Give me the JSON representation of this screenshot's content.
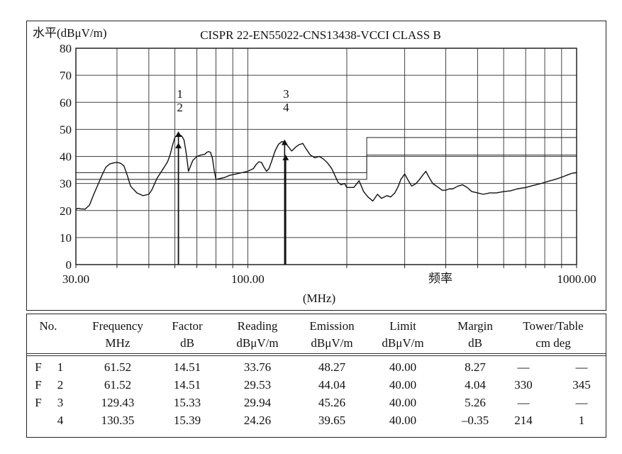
{
  "chart_data": {
    "type": "line",
    "title": "CISPR 22-EN55022-CNS13438-VCCI CLASS B",
    "ylabel": "水平(dBμV/m)",
    "xlabel": "频率",
    "xunit": "(MHz)",
    "x_scale": "log",
    "xlim": [
      30,
      1000
    ],
    "ylim": [
      0,
      80
    ],
    "yticks": [
      0,
      10,
      20,
      30,
      40,
      50,
      60,
      70,
      80
    ],
    "xtick_labels": [
      {
        "value": 30,
        "label": "30.00"
      },
      {
        "value": 100,
        "label": "100.00"
      },
      {
        "value": 1000,
        "label": "1000.00"
      }
    ],
    "grid": true,
    "series": [
      {
        "name": "",
        "points": [
          [
            30,
            20.5
          ],
          [
            30.5,
            20.8
          ],
          [
            31,
            20.6
          ],
          [
            32,
            20.5
          ],
          [
            33,
            22
          ],
          [
            34,
            26
          ],
          [
            35,
            29.5
          ],
          [
            36,
            33
          ],
          [
            37,
            36
          ],
          [
            38,
            37.2
          ],
          [
            39,
            37.6
          ],
          [
            40,
            37.8
          ],
          [
            41,
            37.5
          ],
          [
            42,
            36.5
          ],
          [
            43,
            33
          ],
          [
            44,
            29
          ],
          [
            46,
            26.5
          ],
          [
            48,
            25.5
          ],
          [
            50,
            26
          ],
          [
            51,
            27.5
          ],
          [
            53,
            32
          ],
          [
            55,
            35
          ],
          [
            57,
            38
          ],
          [
            58,
            40.5
          ],
          [
            59,
            44
          ],
          [
            60,
            47
          ],
          [
            61.5,
            48.3
          ],
          [
            63,
            47.5
          ],
          [
            64,
            46
          ],
          [
            65,
            41
          ],
          [
            66,
            34.5
          ],
          [
            67,
            36.5
          ],
          [
            68,
            38.5
          ],
          [
            70,
            40
          ],
          [
            72,
            40.5
          ],
          [
            74,
            40.8
          ],
          [
            75,
            41.5
          ],
          [
            76,
            41.8
          ],
          [
            77,
            41.5
          ],
          [
            78,
            39.5
          ],
          [
            79,
            35
          ],
          [
            80,
            31.5
          ],
          [
            82,
            31.8
          ],
          [
            85,
            32.2
          ],
          [
            88,
            33
          ],
          [
            92,
            33.5
          ],
          [
            96,
            34
          ],
          [
            100,
            34.5
          ],
          [
            104,
            35.5
          ],
          [
            106,
            37
          ],
          [
            108,
            38
          ],
          [
            110,
            37.8
          ],
          [
            112,
            36
          ],
          [
            114,
            34.5
          ],
          [
            116,
            35.5
          ],
          [
            118,
            38
          ],
          [
            121,
            42
          ],
          [
            124,
            44.5
          ],
          [
            127,
            45.5
          ],
          [
            129.4,
            45.3
          ],
          [
            133,
            43.5
          ],
          [
            136,
            42
          ],
          [
            140,
            43.5
          ],
          [
            143,
            44.3
          ],
          [
            147,
            44.8
          ],
          [
            150,
            43
          ],
          [
            155,
            40.5
          ],
          [
            160,
            39.5
          ],
          [
            165,
            40
          ],
          [
            170,
            39
          ],
          [
            175,
            37.5
          ],
          [
            180,
            35.5
          ],
          [
            184,
            33
          ],
          [
            188,
            30.5
          ],
          [
            192,
            29.5
          ],
          [
            197,
            30
          ],
          [
            200,
            28.5
          ],
          [
            210,
            28.5
          ],
          [
            218,
            31
          ],
          [
            225,
            27
          ],
          [
            232,
            25
          ],
          [
            240,
            23.5
          ],
          [
            248,
            26
          ],
          [
            255,
            24.5
          ],
          [
            265,
            25.5
          ],
          [
            272,
            25
          ],
          [
            280,
            26.5
          ],
          [
            287,
            29
          ],
          [
            292,
            31.5
          ],
          [
            300,
            33.5
          ],
          [
            308,
            31
          ],
          [
            315,
            29
          ],
          [
            325,
            30
          ],
          [
            333,
            31.5
          ],
          [
            340,
            33
          ],
          [
            348,
            34.5
          ],
          [
            355,
            32.5
          ],
          [
            365,
            30
          ],
          [
            380,
            28.5
          ],
          [
            390,
            27.5
          ],
          [
            400,
            27.5
          ],
          [
            410,
            28
          ],
          [
            420,
            28
          ],
          [
            435,
            29
          ],
          [
            450,
            29.5
          ],
          [
            465,
            28.5
          ],
          [
            480,
            27
          ],
          [
            500,
            26.5
          ],
          [
            520,
            26
          ],
          [
            545,
            26.5
          ],
          [
            570,
            26.5
          ],
          [
            600,
            27
          ],
          [
            630,
            27.3
          ],
          [
            660,
            28
          ],
          [
            700,
            28.5
          ],
          [
            740,
            29.3
          ],
          [
            780,
            30
          ],
          [
            820,
            30.8
          ],
          [
            860,
            31.5
          ],
          [
            900,
            32.3
          ],
          [
            940,
            33.2
          ],
          [
            970,
            33.8
          ],
          [
            1000,
            34
          ]
        ]
      }
    ],
    "limit_lines": [
      {
        "points": [
          [
            30,
            34
          ],
          [
            230,
            34
          ],
          [
            230,
            47
          ],
          [
            1000,
            47
          ]
        ]
      },
      {
        "points": [
          [
            30,
            31.5
          ],
          [
            230,
            31.5
          ],
          [
            230,
            40.5
          ],
          [
            1000,
            40.5
          ]
        ]
      }
    ],
    "markers": [
      {
        "label": "1",
        "x": 61.52,
        "y": 48.27
      },
      {
        "label": "2",
        "x": 61.52,
        "y": 44.04
      },
      {
        "label": "3",
        "x": 129.43,
        "y": 45.26
      },
      {
        "label": "4",
        "x": 130.35,
        "y": 39.65
      }
    ],
    "marker_label_groups": [
      {
        "x": 61.52,
        "labels": [
          "1",
          "2"
        ]
      },
      {
        "x": 129.43,
        "labels": [
          "3",
          "4"
        ]
      }
    ]
  },
  "table": {
    "headers": [
      [
        "No.",
        ""
      ],
      [
        "Frequency",
        "MHz"
      ],
      [
        "Factor",
        "dB"
      ],
      [
        "Reading",
        "dBμV/m"
      ],
      [
        "Emission",
        "dBμV/m"
      ],
      [
        "Limit",
        "dBμV/m"
      ],
      [
        "Margin",
        "dB"
      ],
      [
        "Tower/Table",
        "cm  deg"
      ]
    ],
    "rows": [
      {
        "flag": "F",
        "no": "1",
        "frequency": "61.52",
        "factor": "14.51",
        "reading": "33.76",
        "emission": "48.27",
        "limit": "40.00",
        "margin": "8.27",
        "tower": "—",
        "table": "—"
      },
      {
        "flag": "F",
        "no": "2",
        "frequency": "61.52",
        "factor": "14.51",
        "reading": "29.53",
        "emission": "44.04",
        "limit": "40.00",
        "margin": "4.04",
        "tower": "330",
        "table": "345"
      },
      {
        "flag": "F",
        "no": "3",
        "frequency": "129.43",
        "factor": "15.33",
        "reading": "29.94",
        "emission": "45.26",
        "limit": "40.00",
        "margin": "5.26",
        "tower": "—",
        "table": "—"
      },
      {
        "flag": "",
        "no": "4",
        "frequency": "130.35",
        "factor": "15.39",
        "reading": "24.26",
        "emission": "39.65",
        "limit": "40.00",
        "margin": "–0.35",
        "tower": "214",
        "table": "1"
      }
    ]
  }
}
